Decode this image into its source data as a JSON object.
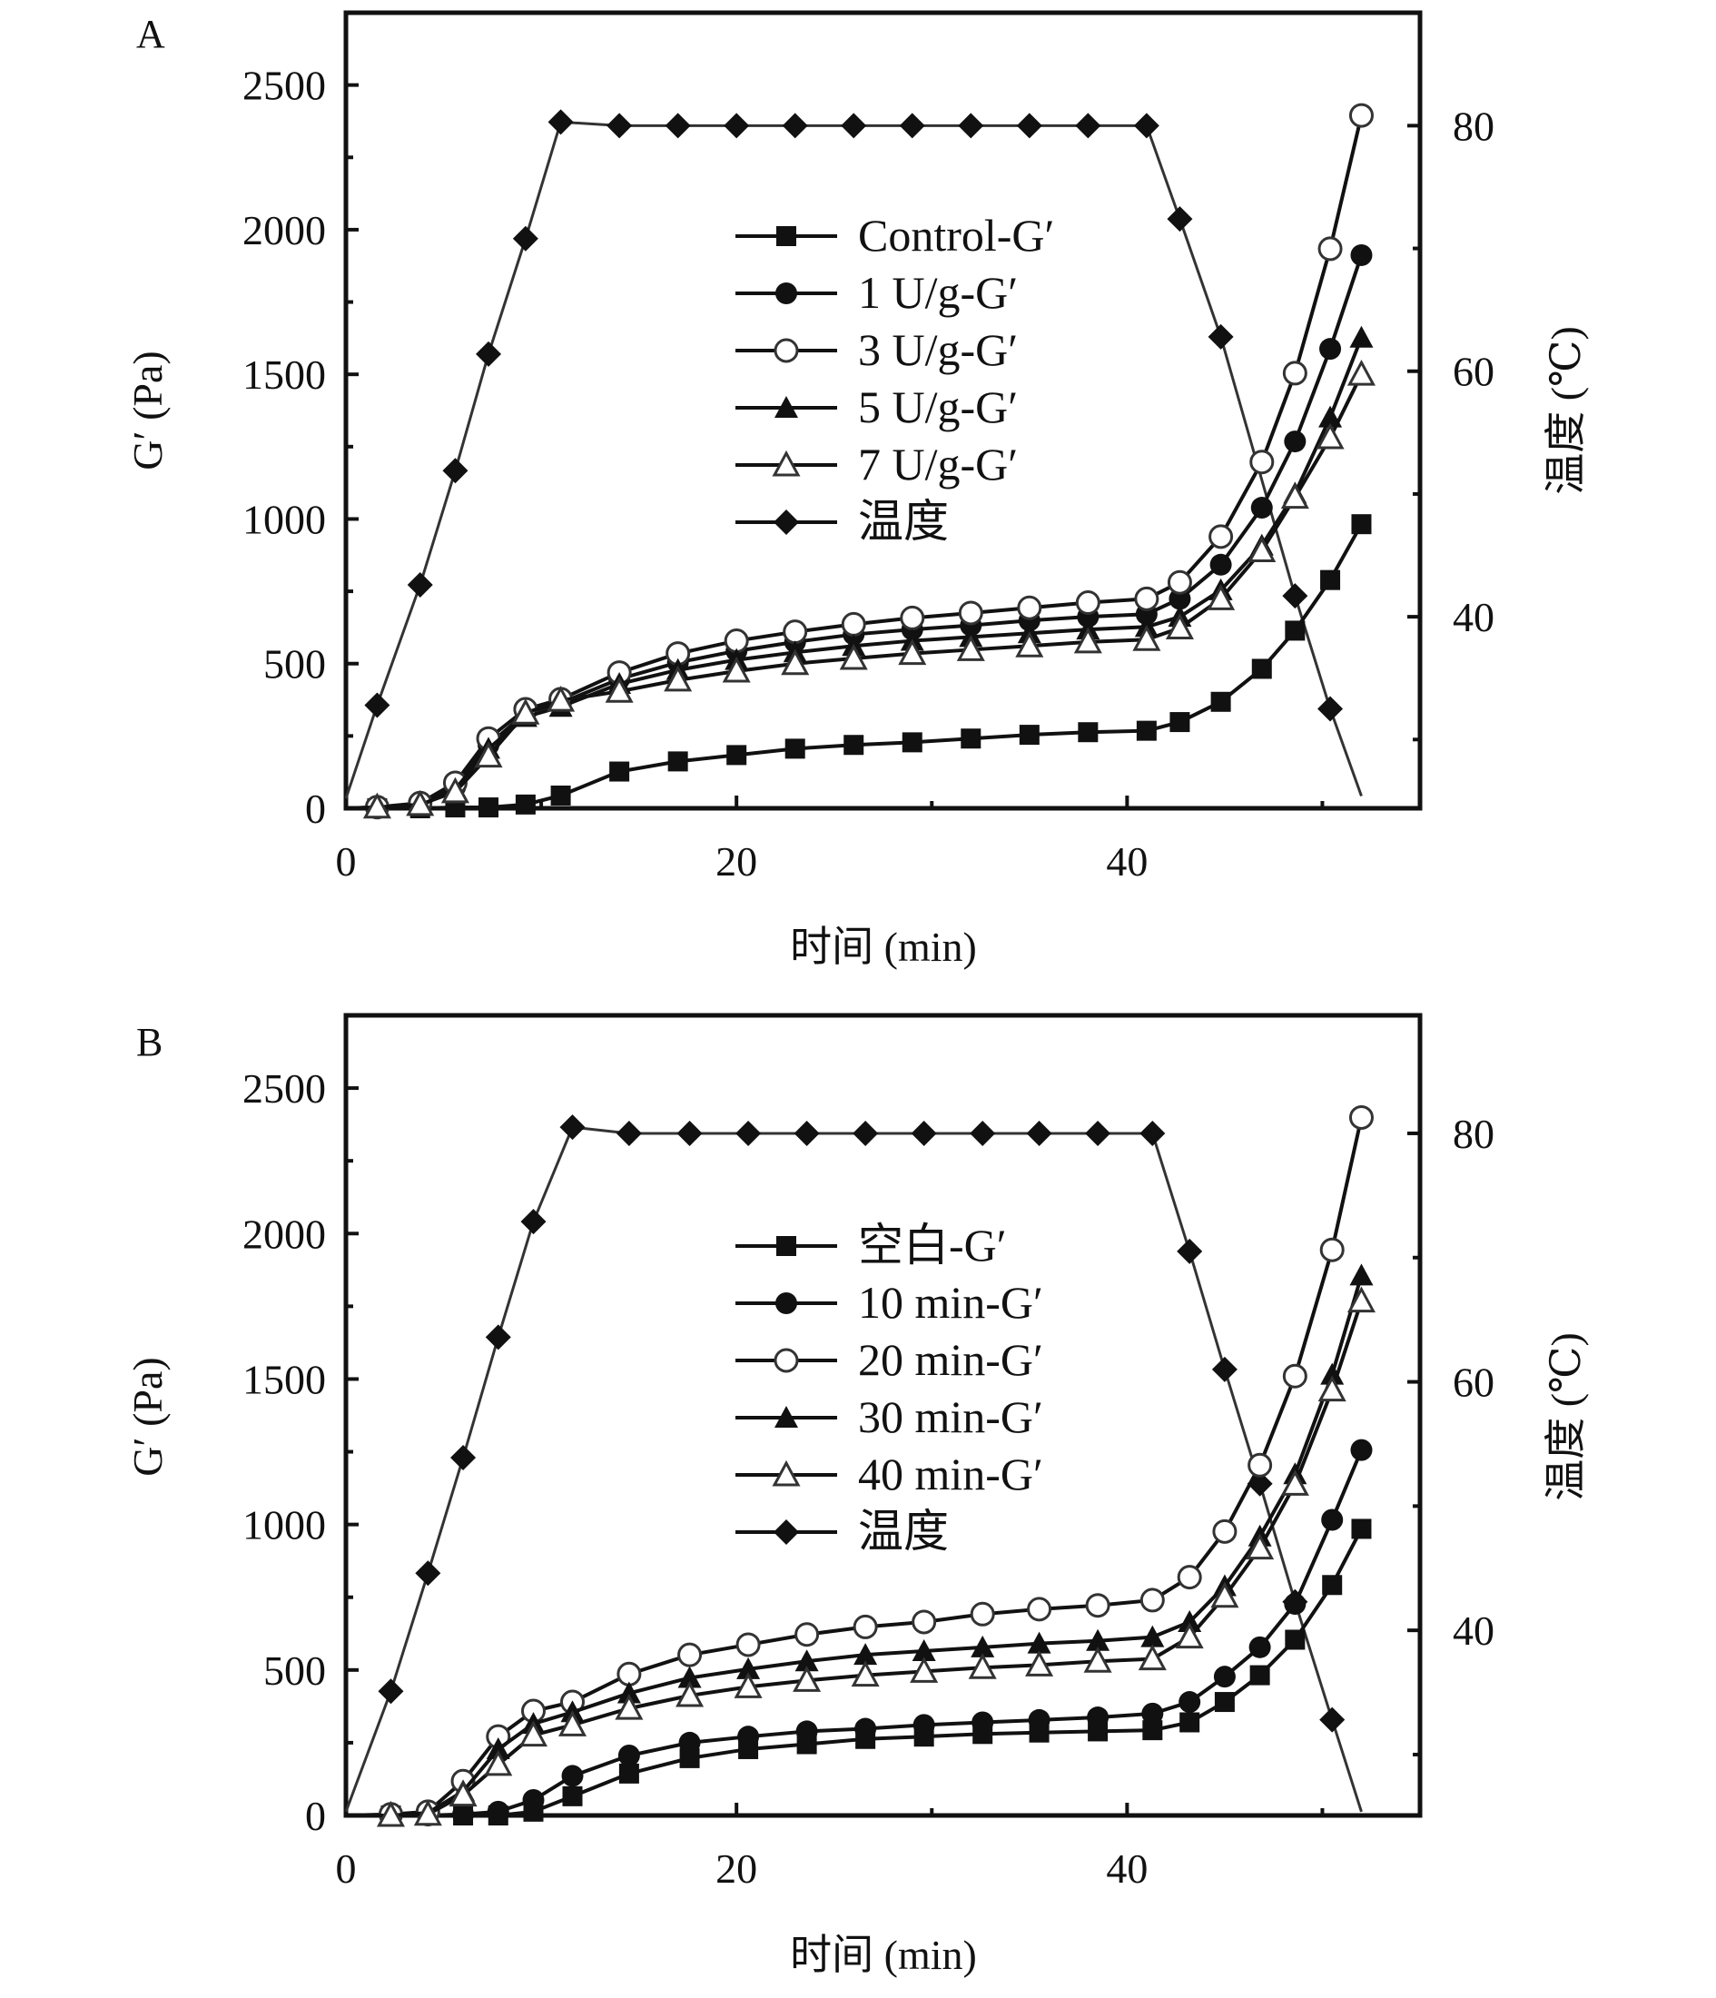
{
  "chart_data": [
    {
      "type": "line",
      "panel_label": "A",
      "xlabel": "时间 (min)",
      "ylabel": "G′ (Pa)",
      "y2label": "温度 (℃)",
      "xlim": [
        0,
        55
      ],
      "ylim": [
        0,
        2750
      ],
      "y2lim": [
        24.4,
        89.2
      ],
      "xticks": [
        0,
        20,
        40
      ],
      "yticks": [
        0,
        500,
        1000,
        1500,
        2000,
        2500
      ],
      "y2ticks": [
        40,
        60,
        80
      ],
      "grid": false,
      "legend_position": "center",
      "x": [
        1.6,
        3.8,
        5.6,
        7.3,
        9.2,
        11.0,
        14.0,
        17.0,
        20.0,
        23.0,
        26.0,
        29.0,
        32.0,
        35.0,
        38.0,
        41.0,
        42.7,
        44.8,
        46.9,
        48.6,
        50.4,
        52.0
      ],
      "series": [
        {
          "name": "Control-G′",
          "marker": "square-filled",
          "axis": "left",
          "values": [
            0,
            0,
            3,
            3,
            13,
            44,
            127,
            162,
            184,
            206,
            219,
            228,
            241,
            254,
            263,
            268,
            298,
            368,
            482,
            614,
            789,
            982
          ]
        },
        {
          "name": "1 U/g-G′",
          "marker": "circle-filled",
          "axis": "left",
          "values": [
            0,
            13,
            75,
            219,
            329,
            364,
            447,
            504,
            544,
            575,
            601,
            618,
            632,
            649,
            662,
            671,
            724,
            842,
            1039,
            1268,
            1588,
            1912
          ]
        },
        {
          "name": "3 U/g-G′",
          "marker": "circle-open",
          "axis": "left",
          "values": [
            4,
            18,
            88,
            241,
            342,
            377,
            469,
            535,
            579,
            610,
            636,
            658,
            675,
            693,
            711,
            724,
            781,
            939,
            1197,
            1504,
            1934,
            2395
          ]
        },
        {
          "name": "5 U/g-G′",
          "marker": "triangle-filled",
          "axis": "left",
          "values": [
            0,
            9,
            66,
            206,
            316,
            351,
            430,
            478,
            513,
            539,
            561,
            579,
            592,
            605,
            618,
            627,
            662,
            754,
            908,
            1088,
            1351,
            1627
          ]
        },
        {
          "name": "7 U/g-G′",
          "marker": "triangle-open",
          "axis": "left",
          "values": [
            4,
            13,
            57,
            180,
            329,
            373,
            404,
            443,
            474,
            500,
            518,
            535,
            548,
            561,
            575,
            583,
            623,
            724,
            890,
            1075,
            1281,
            1500
          ]
        }
      ],
      "temperature": {
        "name": "温度",
        "marker": "diamond-filled",
        "axis": "right",
        "x": [
          0,
          1.6,
          3.8,
          5.6,
          7.3,
          9.2,
          11.0,
          14.0,
          17.0,
          20.0,
          23.0,
          26.0,
          29.0,
          32.0,
          35.0,
          38.0,
          41.0,
          42.7,
          44.8,
          48.6,
          50.4,
          52.0
        ],
        "values": [
          25.2,
          32.8,
          42.6,
          51.9,
          61.4,
          70.8,
          80.3,
          80,
          80,
          80,
          80,
          80,
          80,
          80,
          80,
          80,
          80,
          72.4,
          62.8,
          41.7,
          32.5,
          25.4
        ],
        "markers_hidden_at": [
          0,
          52.0
        ]
      }
    },
    {
      "type": "line",
      "panel_label": "B",
      "xlabel": "时间 (min)",
      "ylabel": "G′ (Pa)",
      "y2label": "温度 (℃)",
      "xlim": [
        0,
        55
      ],
      "ylim": [
        0,
        2750
      ],
      "y2lim": [
        25.1,
        89.5
      ],
      "xticks": [
        0,
        20,
        40
      ],
      "yticks": [
        0,
        500,
        1000,
        1500,
        2000,
        2500
      ],
      "y2ticks": [
        40,
        60,
        80
      ],
      "grid": false,
      "legend_position": "center",
      "x": [
        2.3,
        4.2,
        6.0,
        7.8,
        9.6,
        11.6,
        14.5,
        17.6,
        20.6,
        23.6,
        26.6,
        29.6,
        32.6,
        35.5,
        38.5,
        41.3,
        43.2,
        45.0,
        46.8,
        48.6,
        50.5,
        52.0
      ],
      "series": [
        {
          "name": "空白-G′",
          "marker": "square-filled",
          "axis": "left",
          "values": [
            0,
            0,
            0,
            0,
            13,
            66,
            144,
            197,
            228,
            245,
            263,
            271,
            280,
            285,
            289,
            293,
            320,
            390,
            482,
            604,
            792,
            985
          ]
        },
        {
          "name": "10 min-G′",
          "marker": "circle-filled",
          "axis": "left",
          "values": [
            0,
            0,
            4,
            13,
            53,
            136,
            206,
            250,
            271,
            289,
            298,
            311,
            320,
            328,
            337,
            350,
            390,
            477,
            578,
            727,
            1016,
            1256
          ]
        },
        {
          "name": "20 min-G′",
          "marker": "circle-open",
          "axis": "left",
          "values": [
            4,
            13,
            118,
            271,
            359,
            390,
            486,
            552,
            587,
            622,
            648,
            665,
            692,
            709,
            722,
            740,
            819,
            976,
            1204,
            1510,
            1944,
            2399
          ]
        },
        {
          "name": "30 min-G′",
          "marker": "triangle-filled",
          "axis": "left",
          "values": [
            0,
            9,
            83,
            228,
            315,
            355,
            420,
            473,
            503,
            530,
            552,
            565,
            578,
            591,
            600,
            613,
            665,
            788,
            959,
            1173,
            1515,
            1856
          ]
        },
        {
          "name": "40 min-G′",
          "marker": "triangle-open",
          "axis": "left",
          "values": [
            0,
            4,
            70,
            175,
            276,
            311,
            368,
            412,
            442,
            464,
            482,
            495,
            508,
            517,
            530,
            538,
            613,
            753,
            919,
            1138,
            1462,
            1768
          ]
        }
      ],
      "temperature": {
        "name": "温度",
        "marker": "diamond-filled",
        "axis": "right",
        "x": [
          0,
          2.3,
          4.2,
          6.0,
          7.8,
          9.6,
          11.6,
          14.5,
          17.6,
          20.6,
          23.6,
          26.6,
          29.6,
          32.6,
          35.5,
          38.5,
          41.3,
          43.2,
          45.0,
          46.8,
          48.6,
          50.5,
          52.0
        ],
        "values": [
          25.4,
          35.1,
          44.6,
          53.9,
          63.6,
          72.9,
          80.5,
          80,
          80,
          80,
          80,
          80,
          80,
          80,
          80,
          80,
          80,
          70.5,
          61.0,
          51.8,
          42.3,
          32.8,
          25.4
        ],
        "markers_hidden_at": [
          0,
          52.0
        ]
      }
    }
  ]
}
